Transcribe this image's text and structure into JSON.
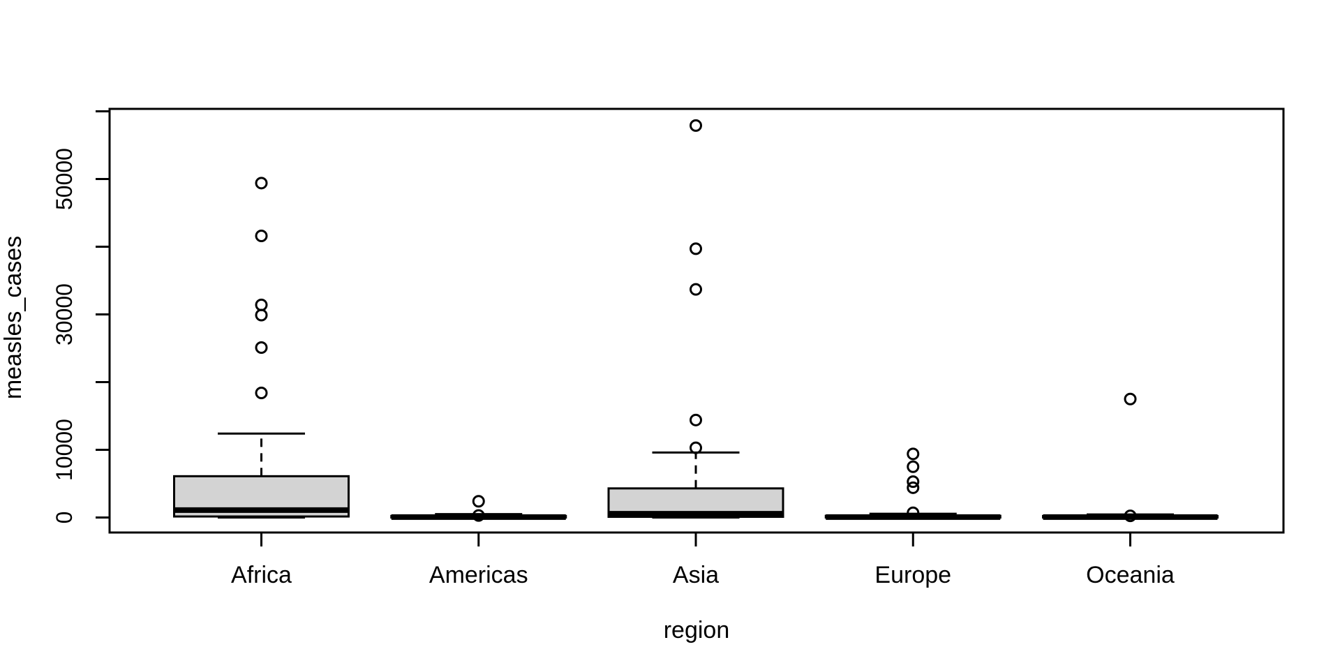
{
  "figure": {
    "background": "#ffffff",
    "text_color": "#000000"
  },
  "chart_data": {
    "type": "boxplot",
    "title": "",
    "xlabel": "region",
    "ylabel": "measles_cases",
    "categories": [
      "Africa",
      "Americas",
      "Asia",
      "Europe",
      "Oceania"
    ],
    "ylim": [
      0,
      60000
    ],
    "grid": false,
    "legend": false,
    "box_fill": "#d3d3d3",
    "line_color": "#000000",
    "yticks": [
      {
        "value": 0,
        "label": "0"
      },
      {
        "value": 10000,
        "label": "10000"
      },
      {
        "value": 20000,
        "label": ""
      },
      {
        "value": 30000,
        "label": "30000"
      },
      {
        "value": 40000,
        "label": ""
      },
      {
        "value": 50000,
        "label": "50000"
      },
      {
        "value": 60000,
        "label": ""
      }
    ],
    "series": [
      {
        "name": "Africa",
        "whisker_low": 0,
        "q1": 150,
        "median": 1100,
        "q3": 6100,
        "whisker_high": 12400,
        "outliers": [
          18400,
          25100,
          29900,
          31400,
          41600,
          49400
        ]
      },
      {
        "name": "Americas",
        "whisker_low": 0,
        "q1": 0,
        "median": 60,
        "q3": 230,
        "whisker_high": 500,
        "outliers": [
          300,
          2400
        ]
      },
      {
        "name": "Asia",
        "whisker_low": 0,
        "q1": 100,
        "median": 550,
        "q3": 4300,
        "whisker_high": 9600,
        "outliers": [
          10300,
          14400,
          33700,
          39700,
          57900
        ]
      },
      {
        "name": "Europe",
        "whisker_low": 0,
        "q1": 0,
        "median": 70,
        "q3": 250,
        "whisker_high": 550,
        "outliers": [
          700,
          4400,
          5300,
          7500,
          9400
        ]
      },
      {
        "name": "Oceania",
        "whisker_low": 0,
        "q1": 0,
        "median": 60,
        "q3": 220,
        "whisker_high": 450,
        "outliers": [
          250,
          17500
        ]
      }
    ]
  }
}
